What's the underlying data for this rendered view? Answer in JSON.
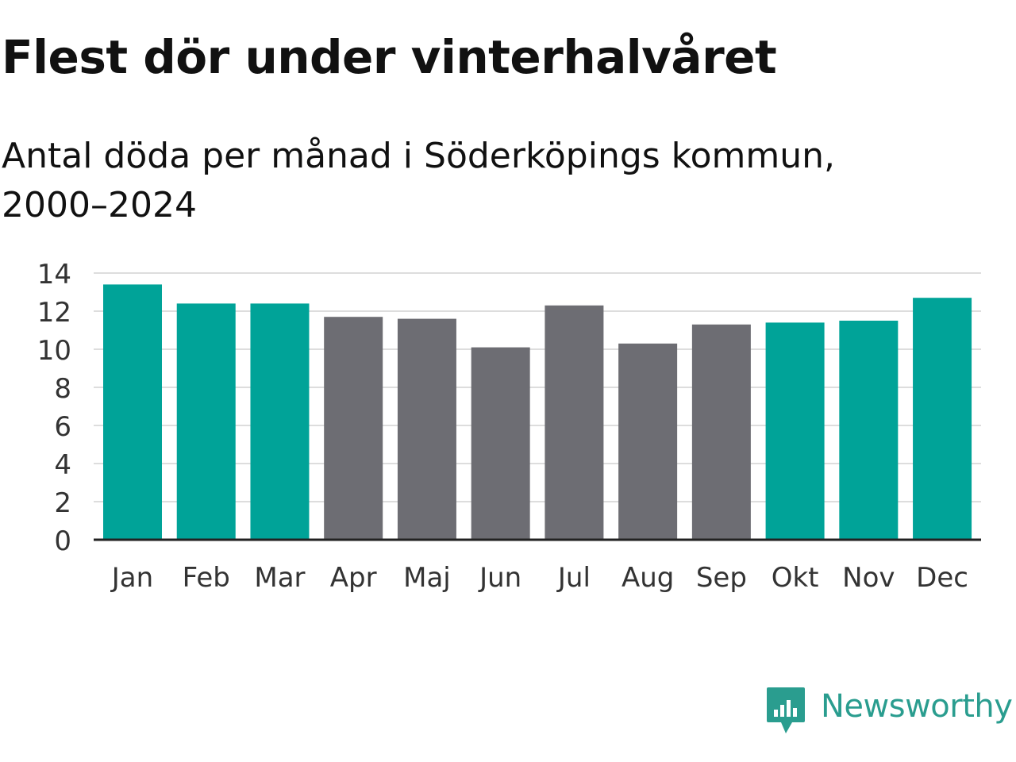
{
  "header": {
    "title": "Flest dör under vinterhalvåret",
    "subtitle": "Antal döda per månad i Söderköpings kommun, 2000–2024"
  },
  "brand": {
    "name": "Newsworthy",
    "color": "#2a9d8f"
  },
  "colors": {
    "winter": "#00a398",
    "summer": "#6d6d73",
    "grid": "#dddddd",
    "axis": "#222222"
  },
  "chart_data": {
    "type": "bar",
    "title": "Flest dör under vinterhalvåret",
    "subtitle": "Antal döda per månad i Söderköpings kommun, 2000–2024",
    "xlabel": "",
    "ylabel": "",
    "categories": [
      "Jan",
      "Feb",
      "Mar",
      "Apr",
      "Maj",
      "Jun",
      "Jul",
      "Aug",
      "Sep",
      "Okt",
      "Nov",
      "Dec"
    ],
    "values": [
      13.4,
      12.4,
      12.4,
      11.7,
      11.6,
      10.1,
      12.3,
      10.3,
      11.3,
      11.4,
      11.5,
      12.7
    ],
    "highlight": [
      true,
      true,
      true,
      false,
      false,
      false,
      false,
      false,
      false,
      true,
      true,
      true
    ],
    "ylim": [
      0,
      14
    ],
    "yticks": [
      0,
      2,
      4,
      6,
      8,
      10,
      12,
      14
    ],
    "grid": true
  }
}
